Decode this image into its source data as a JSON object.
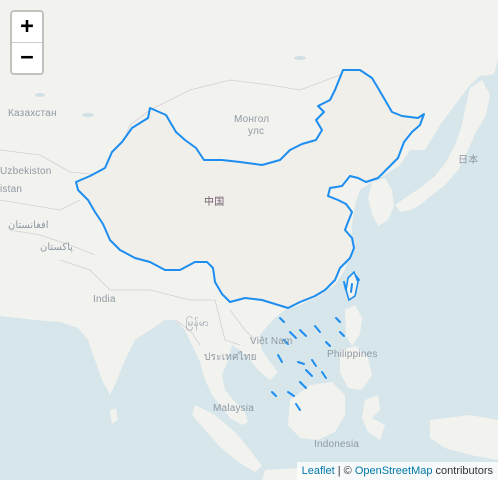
{
  "map": {
    "labels": {
      "kazakhstan": "Казахстан",
      "mongolia_line1": "Монгол",
      "mongolia_line2": "улс",
      "uzbekistan": "Uzbekiston",
      "turkmenistan": "istan",
      "afghanistan": "افغانستان",
      "pakistan": "پاکستان",
      "india": "India",
      "china": "中国",
      "japan": "日本",
      "myanmar": "မြန်မာ",
      "vietnam": "Việt Nam",
      "thailand": "ประเทศไทย",
      "philippines": "Philippines",
      "malaysia": "Malaysia",
      "indonesia": "Indonesia"
    },
    "highlight_color": "#1d8ef0",
    "land_color": "#f2f2ef",
    "highlight_fill": "#f1efea",
    "water_color": "#d6e6ea"
  },
  "zoom": {
    "in_label": "+",
    "out_label": "−"
  },
  "attribution": {
    "leaflet": "Leaflet",
    "separator": " | © ",
    "osm": "OpenStreetMap",
    "suffix": " contributors"
  }
}
